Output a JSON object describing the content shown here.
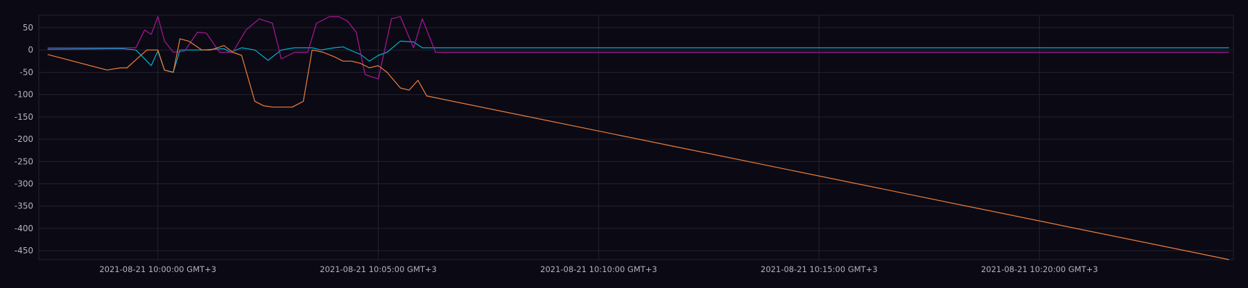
{
  "chart_data": {
    "type": "line",
    "title": "",
    "xlabel": "",
    "ylabel": "",
    "x_tick_labels": [
      "2021-08-21 10:00:00 GMT+3",
      "2021-08-21 10:05:00 GMT+3",
      "2021-08-21 10:10:00 GMT+3",
      "2021-08-21 10:15:00 GMT+3",
      "2021-08-21 10:20:00 GMT+3"
    ],
    "x_ticks_minutes": [
      0,
      5,
      10,
      15,
      20
    ],
    "xlim_minutes": [
      -2.7,
      24.4
    ],
    "y_ticks": [
      50,
      0,
      -50,
      -100,
      -150,
      -200,
      -250,
      -300,
      -350,
      -400,
      -450
    ],
    "ylim": [
      -470,
      78
    ],
    "grid": true,
    "legend": "none",
    "colors": {
      "background": "#0b0a14",
      "grid": "#24222f",
      "tick_text": "#b5b3c0"
    },
    "series": [
      {
        "color": "#00b5d8",
        "x": [
          -2.5,
          -0.8,
          -0.5,
          -0.3,
          -0.15,
          0,
          0.15,
          0.35,
          0.5,
          1.0,
          1.3,
          1.5,
          1.65,
          1.9,
          2.2,
          2.5,
          2.8,
          3.1,
          3.3,
          3.5,
          3.7,
          4.0,
          4.2,
          4.4,
          4.6,
          4.8,
          5.0,
          5.2,
          5.5,
          5.8,
          6.0,
          6.3,
          24.3
        ],
        "y": [
          2,
          3,
          0,
          -20,
          -35,
          -2,
          -45,
          -50,
          0,
          0,
          2,
          3,
          -5,
          5,
          0,
          -23,
          0,
          5,
          5,
          5,
          0,
          5,
          7,
          -2,
          -10,
          -25,
          -12,
          -5,
          20,
          18,
          5,
          5,
          5
        ]
      },
      {
        "color": "#b0169e",
        "x": [
          -2.5,
          -0.5,
          -0.3,
          -0.15,
          0,
          0.15,
          0.35,
          0.6,
          0.9,
          1.1,
          1.4,
          1.7,
          2.0,
          2.3,
          2.6,
          2.8,
          3.1,
          3.4,
          3.6,
          3.9,
          4.1,
          4.3,
          4.5,
          4.7,
          5.0,
          5.3,
          5.5,
          5.8,
          6.0,
          6.3,
          24.3
        ],
        "y": [
          5,
          5,
          45,
          35,
          75,
          20,
          -5,
          -3,
          40,
          38,
          -5,
          -5,
          45,
          70,
          60,
          -20,
          -5,
          -5,
          60,
          75,
          75,
          65,
          40,
          -55,
          -65,
          70,
          75,
          5,
          70,
          -5,
          -5
        ]
      },
      {
        "color": "#f5803b",
        "x": [
          -2.5,
          -1.15,
          -0.85,
          -0.7,
          -0.25,
          0,
          0.15,
          0.35,
          0.5,
          0.7,
          1.0,
          1.2,
          1.5,
          1.7,
          1.9,
          2.2,
          2.4,
          2.6,
          2.8,
          3.05,
          3.3,
          3.5,
          3.75,
          4.0,
          4.2,
          4.4,
          4.6,
          4.8,
          5.0,
          5.2,
          5.5,
          5.7,
          5.9,
          6.1,
          24.3
        ],
        "y": [
          -10,
          -45,
          -40,
          -40,
          0,
          0,
          -45,
          -50,
          25,
          20,
          0,
          0,
          10,
          -5,
          -12,
          -115,
          -125,
          -128,
          -128,
          -128,
          -115,
          0,
          -5,
          -15,
          -25,
          -25,
          -30,
          -40,
          -35,
          -50,
          -85,
          -90,
          -68,
          -103,
          -470
        ]
      }
    ]
  }
}
